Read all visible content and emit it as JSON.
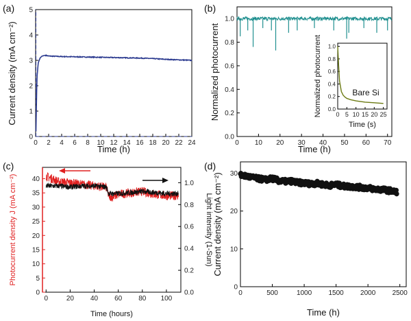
{
  "chart_data": [
    {
      "panel": "(a)",
      "type": "line",
      "xlabel": "Time (h)",
      "ylabel": "Current density (mA cm⁻²)",
      "xlim": [
        0,
        24
      ],
      "ylim": [
        0,
        5
      ],
      "xticks": [
        0,
        2,
        4,
        6,
        8,
        10,
        12,
        14,
        16,
        18,
        20,
        22,
        24
      ],
      "yticks": [
        0,
        1,
        2,
        3,
        4,
        5
      ],
      "colors": {
        "line": "#2b3a8f"
      },
      "series": [
        {
          "x": [
            0.05,
            0.2,
            0.4,
            0.7,
            1.0,
            1.5,
            2,
            4,
            6,
            8,
            10,
            12,
            14,
            16,
            18,
            20,
            22,
            24
          ],
          "y": [
            0.2,
            2.3,
            2.9,
            3.1,
            3.17,
            3.2,
            3.17,
            3.15,
            3.14,
            3.13,
            3.12,
            3.11,
            3.1,
            3.09,
            3.07,
            3.04,
            3.02,
            3.0
          ]
        }
      ]
    },
    {
      "panel": "(b)",
      "type": "line",
      "xlabel": "Time (h)",
      "ylabel": "Normalized photocurrent",
      "xlim": [
        0,
        72
      ],
      "ylim": [
        0,
        1.1
      ],
      "xticks": [
        0,
        10,
        20,
        30,
        40,
        50,
        60,
        70
      ],
      "yticks": [
        0.0,
        0.2,
        0.4,
        0.6,
        0.8,
        1.0
      ],
      "ytick_labels": [
        "0.0",
        "0.2",
        "0.4",
        "0.6",
        "0.8",
        "1.0"
      ],
      "colors": {
        "line": "#1f8f8f"
      },
      "series": [
        {
          "baseline": 1.0,
          "dips": [
            [
              1.5,
              0.85
            ],
            [
              5,
              0.9
            ],
            [
              7.5,
              0.76
            ],
            [
              12,
              0.92
            ],
            [
              16,
              0.9
            ],
            [
              18,
              0.73
            ],
            [
              24,
              0.88
            ],
            [
              28,
              0.9
            ],
            [
              36,
              0.92
            ],
            [
              45,
              0.9
            ],
            [
              51,
              0.83
            ],
            [
              52,
              0.88
            ],
            [
              59,
              0.92
            ],
            [
              65,
              0.88
            ],
            [
              70,
              0.9
            ]
          ]
        }
      ],
      "inset": {
        "type": "line",
        "label": "Bare Si",
        "xlabel": "Time (s)",
        "ylabel": "Normalized photocurrent",
        "xlim": [
          0,
          27
        ],
        "ylim": [
          0,
          1.05
        ],
        "xticks": [
          0,
          5,
          10,
          15,
          20,
          25
        ],
        "yticks": [
          0.0,
          0.2,
          0.4,
          0.6,
          0.8,
          1.0
        ],
        "ytick_labels": [
          "0.0",
          "0.2",
          "0.4",
          "0.6",
          "0.8",
          "1.0"
        ],
        "colors": {
          "line": "#6b7a12"
        },
        "series": [
          {
            "x": [
              0,
              0.5,
              1,
              2,
              3,
              4,
              5,
              7,
              10,
              15,
              20,
              25
            ],
            "y": [
              1.0,
              0.7,
              0.45,
              0.28,
              0.22,
              0.19,
              0.17,
              0.15,
              0.13,
              0.11,
              0.1,
              0.09
            ]
          }
        ]
      }
    },
    {
      "panel": "(c)",
      "type": "line",
      "xlabel": "Time (hours)",
      "ylabel_left": "Photocurrent density  J (mA cm⁻²)",
      "ylabel_right": "Light intensity (1-Sun)",
      "xlim": [
        -3,
        112
      ],
      "ylim_left": [
        0,
        44
      ],
      "ylim_right": [
        0,
        1.14
      ],
      "xticks": [
        0,
        20,
        40,
        60,
        80,
        100
      ],
      "yticks_left": [
        0,
        5,
        10,
        15,
        20,
        25,
        30,
        35,
        40
      ],
      "yticks_right": [
        0.0,
        0.2,
        0.4,
        0.6,
        0.8,
        1.0
      ],
      "ytick_labels_right": [
        "0.0",
        "0.2",
        "0.4",
        "0.6",
        "0.8",
        "1.0"
      ],
      "colors": {
        "left_series": "#e02020",
        "right_series": "#111111",
        "left_axis": "#e02020"
      },
      "series": [
        {
          "axis": "left",
          "x": [
            0,
            2,
            5,
            10,
            20,
            30,
            40,
            50,
            52,
            55,
            60,
            70,
            80,
            90,
            100,
            110
          ],
          "y": [
            41,
            40.5,
            40,
            39,
            38.5,
            38,
            37.5,
            37,
            34,
            33.5,
            34.5,
            35,
            35.5,
            34.5,
            34,
            34
          ]
        },
        {
          "axis": "right",
          "x": [
            0,
            10,
            20,
            30,
            40,
            50,
            52,
            60,
            70,
            80,
            90,
            100,
            110
          ],
          "y": [
            0.97,
            0.97,
            0.96,
            0.97,
            0.97,
            0.96,
            0.9,
            0.9,
            0.91,
            0.92,
            0.91,
            0.9,
            0.9
          ]
        }
      ]
    },
    {
      "panel": "(d)",
      "type": "scatter",
      "xlabel": "Time (h)",
      "ylabel": "Current density (mA cm⁻²)",
      "xlim": [
        0,
        2600
      ],
      "ylim": [
        0,
        33
      ],
      "xticks": [
        0,
        500,
        1000,
        1500,
        2000,
        2500
      ],
      "yticks": [
        0,
        10,
        20,
        30
      ],
      "colors": {
        "markers": "#111111"
      },
      "series": [
        {
          "x": [
            0,
            100,
            200,
            300,
            400,
            500,
            600,
            700,
            800,
            900,
            1000,
            1100,
            1200,
            1300,
            1400,
            1500,
            1600,
            1700,
            1800,
            1900,
            2000,
            2100,
            2200,
            2300,
            2400,
            2450
          ],
          "y": [
            29.5,
            29.2,
            28.8,
            28.5,
            28.3,
            28.6,
            28.0,
            27.8,
            27.9,
            27.5,
            27.4,
            27.2,
            27.3,
            27.0,
            26.8,
            27.0,
            26.6,
            26.5,
            26.4,
            26.2,
            26.1,
            25.8,
            25.7,
            25.5,
            25.2,
            25.0
          ]
        }
      ]
    }
  ]
}
